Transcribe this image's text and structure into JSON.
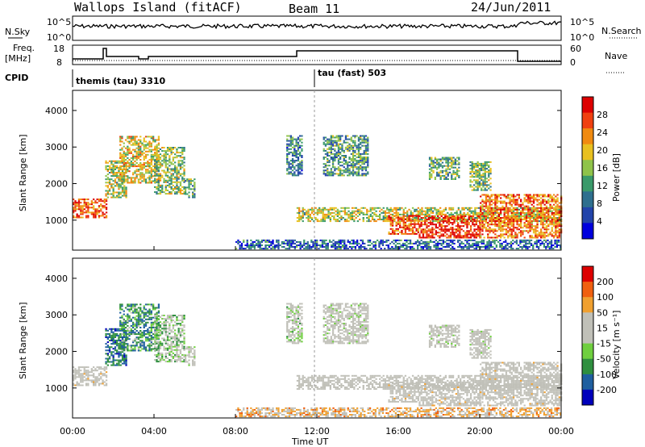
{
  "header": {
    "station": "Wallops Island (fitACF)",
    "beam": "Beam 11",
    "date": "24/Jun/2011"
  },
  "noise_panel": {
    "left_label": "N.Sky",
    "right_label": "N.Search",
    "left_ticks": [
      "10^5",
      "10^0"
    ],
    "right_ticks": [
      "10^5",
      "10^0"
    ]
  },
  "freq_panel": {
    "left_label_1": "Freq.",
    "left_label_2": "[MHz]",
    "left_ticks": [
      "18",
      "8"
    ],
    "right_label": "Nave",
    "right_ticks": [
      "60",
      "0"
    ]
  },
  "cpid_panel": {
    "label": "CPID",
    "programs": [
      {
        "name": "themis (tau) 3310",
        "start_hour": 0
      },
      {
        "name": "tau (fast) 503",
        "start_hour": 12
      }
    ]
  },
  "chart_data": [
    {
      "type": "heatmap",
      "name": "power",
      "ylabel": "Slant Range [km]",
      "xlabel": "Time UT",
      "xlim": [
        0,
        24
      ],
      "ylim": [
        180,
        4550
      ],
      "yticks": [
        1000,
        2000,
        3000,
        4000
      ],
      "xticks": [
        "00:00",
        "04:00",
        "08:00",
        "12:00",
        "16:00",
        "20:00",
        "00:00"
      ],
      "colorbar": {
        "label": "Power [dB]",
        "ticks": [
          "28",
          "24",
          "20",
          "16",
          "12",
          "8",
          "4"
        ],
        "colors": [
          "#0000dd",
          "#2244aa",
          "#2e6f8e",
          "#3a9a6a",
          "#8fc34a",
          "#e8c020",
          "#f08a10",
          "#f04010",
          "#dd0000"
        ]
      }
    },
    {
      "type": "heatmap",
      "name": "velocity",
      "ylabel": "Slant Range [km]",
      "xlabel": "Time UT",
      "xlim": [
        0,
        24
      ],
      "ylim": [
        180,
        4550
      ],
      "yticks": [
        1000,
        2000,
        3000,
        4000
      ],
      "xticks": [
        "00:00",
        "04:00",
        "08:00",
        "12:00",
        "16:00",
        "20:00",
        "00:00"
      ],
      "colorbar": {
        "label": "Velocity [m s⁻¹]",
        "ticks": [
          "200",
          "100",
          "50",
          "15",
          "-15",
          "-50",
          "-100",
          "-200"
        ],
        "colors": [
          "#0000bb",
          "#1f5f9f",
          "#2f8f3f",
          "#6fcf3f",
          "#c0c0b8",
          "#c0c0b8",
          "#f0a030",
          "#f06010",
          "#dd0000"
        ]
      }
    }
  ],
  "echo_regions": [
    {
      "t0": 0.0,
      "t1": 1.7,
      "r0": 1050,
      "r1": 1550,
      "p": 0.85,
      "v": -0.1
    },
    {
      "t0": 1.6,
      "t1": 2.6,
      "r0": 1600,
      "r1": 2600,
      "p": 0.55,
      "v": 0.7
    },
    {
      "t0": 2.3,
      "t1": 4.2,
      "r0": 2000,
      "r1": 3300,
      "p": 0.6,
      "v": 0.5
    },
    {
      "t0": 4.0,
      "t1": 5.5,
      "r0": 1700,
      "r1": 3000,
      "p": 0.5,
      "v": 0.2
    },
    {
      "t0": 5.5,
      "t1": 6.0,
      "r0": 1600,
      "r1": 2100,
      "p": 0.35,
      "v": 0.0
    },
    {
      "t0": 10.5,
      "t1": 11.3,
      "r0": 2200,
      "r1": 3300,
      "p": 0.3,
      "v": 0.1
    },
    {
      "t0": 11.0,
      "t1": 24.0,
      "r0": 950,
      "r1": 1350,
      "p": 0.55,
      "v": -0.05
    },
    {
      "t0": 12.3,
      "t1": 14.5,
      "r0": 2200,
      "r1": 3300,
      "p": 0.35,
      "v": 0.0
    },
    {
      "t0": 15.5,
      "t1": 17.0,
      "r0": 600,
      "r1": 1100,
      "p": 0.85,
      "v": -0.1
    },
    {
      "t0": 17.0,
      "t1": 20.0,
      "r0": 500,
      "r1": 1100,
      "p": 0.95,
      "v": -0.1
    },
    {
      "t0": 20.0,
      "t1": 24.0,
      "r0": 500,
      "r1": 1700,
      "p": 0.8,
      "v": -0.1
    },
    {
      "t0": 17.5,
      "t1": 19.0,
      "r0": 2100,
      "r1": 2700,
      "p": 0.4,
      "v": 0.0
    },
    {
      "t0": 19.5,
      "t1": 20.5,
      "r0": 1800,
      "r1": 2600,
      "p": 0.45,
      "v": 0.0
    },
    {
      "t0": 8.0,
      "t1": 24.0,
      "r0": 200,
      "r1": 450,
      "p": 0.2,
      "v": -0.4
    }
  ]
}
